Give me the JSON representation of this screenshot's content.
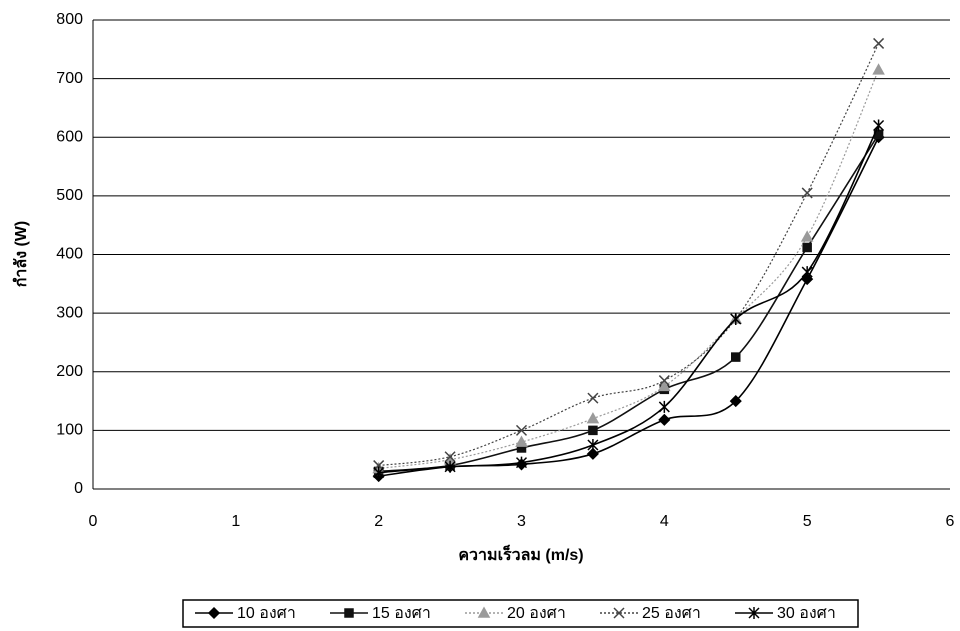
{
  "chart_data": {
    "type": "line",
    "xlabel": "ความเร็วลม (m/s)",
    "ylabel": "กำลัง (W)",
    "x": [
      2,
      2.5,
      3,
      3.5,
      4,
      4.5,
      5,
      5.5
    ],
    "xlim": [
      0,
      6
    ],
    "xticks": [
      0,
      1,
      2,
      3,
      4,
      5,
      6
    ],
    "ylim": [
      0,
      800
    ],
    "yticks": [
      0,
      100,
      200,
      300,
      400,
      500,
      600,
      700,
      800
    ],
    "grid": true,
    "legend": "bottom",
    "series": [
      {
        "name": "10 องศา",
        "color": "#000000",
        "marker": "diamond",
        "line_style": "solid",
        "values": [
          22,
          38,
          42,
          60,
          118,
          150,
          358,
          600
        ]
      },
      {
        "name": "15 องศา",
        "color": "#111111",
        "marker": "square",
        "line_style": "solid",
        "values": [
          30,
          40,
          70,
          100,
          170,
          225,
          412,
          605
        ]
      },
      {
        "name": "20 องศา",
        "color": "#9a9a9a",
        "marker": "triangle",
        "line_style": "dotted",
        "values": [
          35,
          50,
          80,
          120,
          175,
          290,
          430,
          715
        ]
      },
      {
        "name": "25 องศา",
        "color": "#444444",
        "marker": "cross",
        "line_style": "dotted",
        "values": [
          40,
          55,
          100,
          155,
          185,
          290,
          505,
          760
        ]
      },
      {
        "name": "30 องศา",
        "color": "#000000",
        "marker": "star",
        "line_style": "solid",
        "values": [
          28,
          38,
          45,
          75,
          140,
          290,
          370,
          620
        ]
      }
    ]
  }
}
